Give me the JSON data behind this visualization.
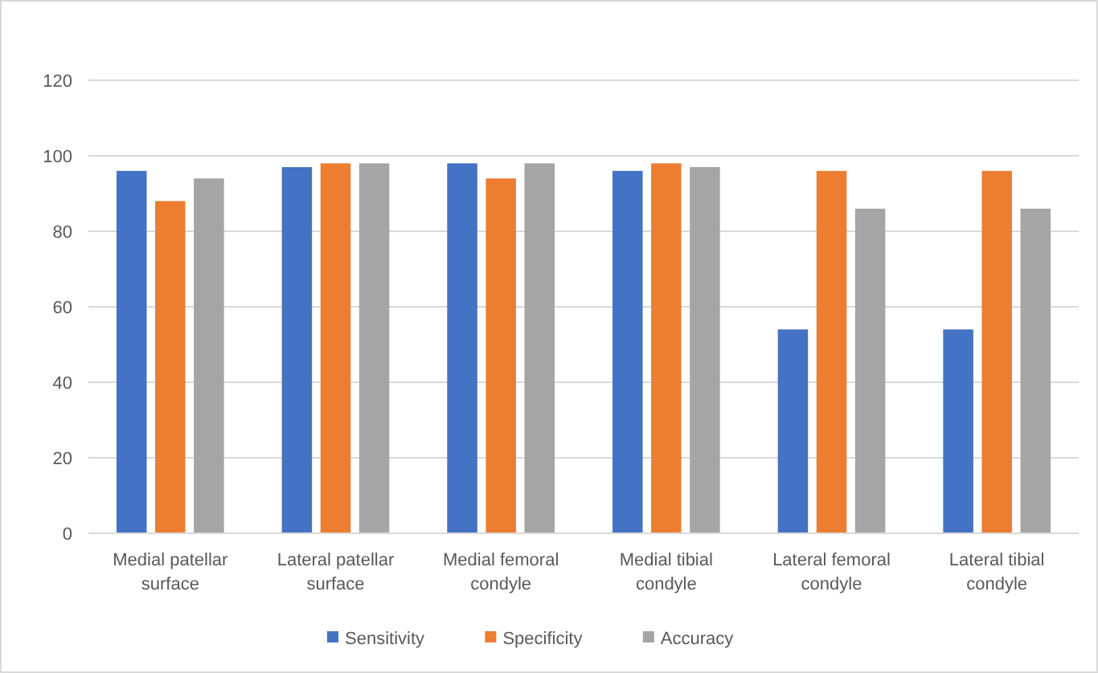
{
  "chart_data": {
    "type": "bar",
    "categories": [
      "Medial patellar surface",
      "Lateral patellar surface",
      "Medial femoral condyle",
      "Medial tibial condyle",
      "Lateral femoral condyle",
      "Lateral tibial condyle"
    ],
    "series": [
      {
        "name": "Sensitivity",
        "color": "#4472c4",
        "values": [
          96,
          97,
          98,
          96,
          54,
          54
        ]
      },
      {
        "name": "Specificity",
        "color": "#ed7d31",
        "values": [
          88,
          98,
          94,
          98,
          96,
          96
        ]
      },
      {
        "name": "Accuracy",
        "color": "#a5a5a5",
        "values": [
          94,
          98,
          98,
          97,
          86,
          86
        ]
      }
    ],
    "ylim": [
      0,
      120
    ],
    "yticks": [
      0,
      20,
      40,
      60,
      80,
      100,
      120
    ],
    "grid": "y",
    "legend": "bottom"
  }
}
